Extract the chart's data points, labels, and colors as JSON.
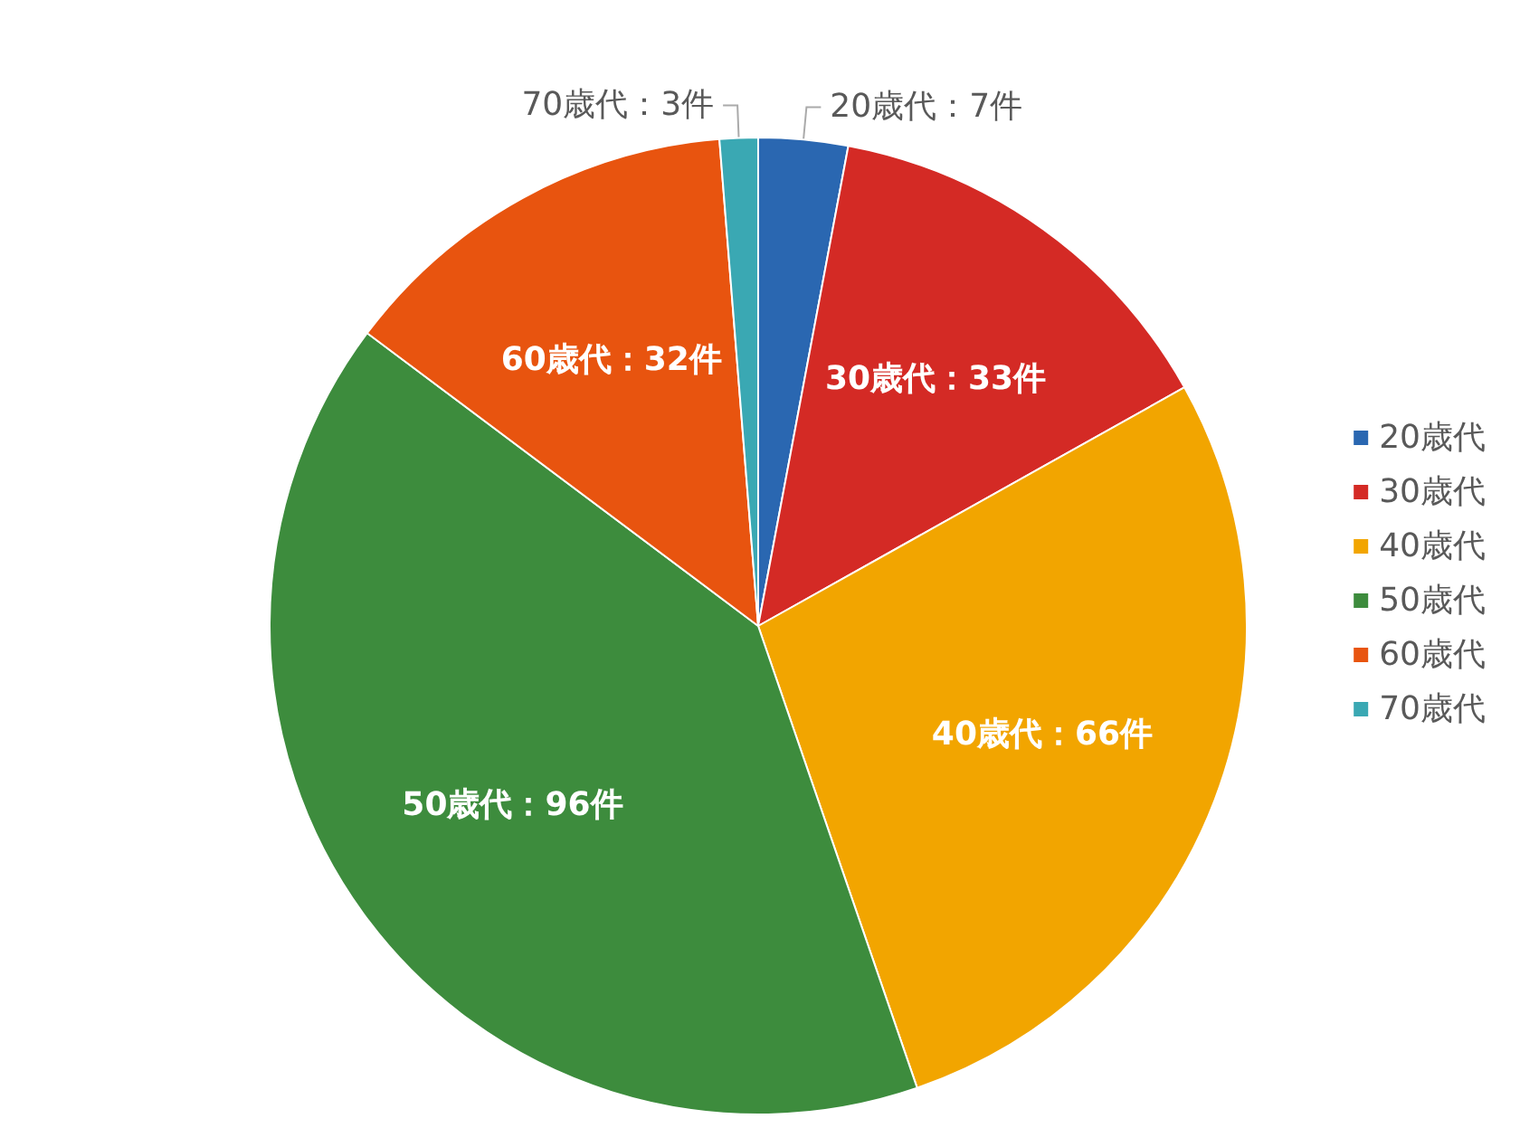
{
  "chart_data": {
    "type": "pie",
    "categories": [
      "20歳代",
      "30歳代",
      "40歳代",
      "50歳代",
      "60歳代",
      "70歳代"
    ],
    "values": [
      7,
      33,
      66,
      96,
      32,
      3
    ],
    "colors": [
      "#2a67b1",
      "#d42a25",
      "#f2a500",
      "#3d8c3d",
      "#e8540f",
      "#3aa8b3"
    ],
    "value_labels": [
      "20歳代：7件",
      "30歳代：33件",
      "40歳代：66件",
      "50歳代：96件",
      "60歳代：32件",
      "70歳代：3件"
    ],
    "legend": "right"
  }
}
